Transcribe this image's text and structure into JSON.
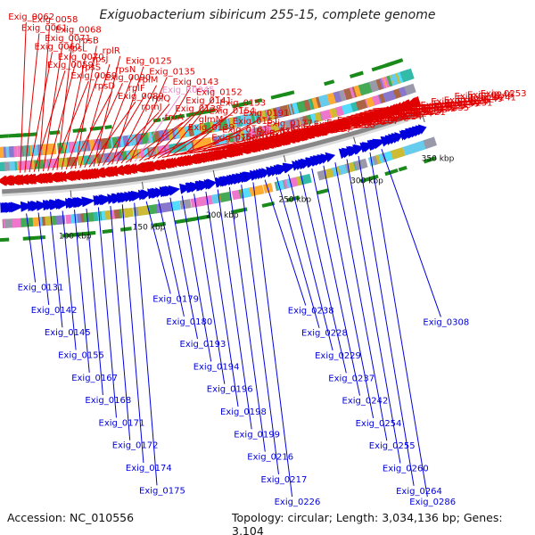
{
  "title": "Exiguobacterium sibiricum 255-15, complete genome",
  "accession": "Accession: NC_010556",
  "summary": "Topology: circular; Length: 3,034,136 bp; Genes: 3,104",
  "colors": {
    "forward_strand": "#e00000",
    "reverse_strand": "#0000dd",
    "rna_label": "#ee88cc",
    "backbone": "#888888",
    "tick": "#1a8a1a"
  },
  "scale_labels": [
    "100 kbp",
    "150 kbp",
    "200 kbp",
    "250 kbp",
    "300 kbp",
    "350 kbp"
  ],
  "forward_labels": [
    "Exig_0062",
    "Exig_0061",
    "Exig_0060",
    "Exig_0059",
    "Exig_0058",
    "Exig_0071",
    "Exig_0070",
    "Exig_0069",
    "Exig_0068",
    "rpsL",
    "rpsS",
    "rpsD",
    "rpsB",
    "rpsJ",
    "Exig_0090",
    "Exig_0089",
    "rplR",
    "rpsN",
    "rplF",
    "rpmJ",
    "Exig_0125",
    "rplM",
    "rplQ",
    "truA",
    "Exig_0135",
    "Exig_R0045",
    "Exig_0138",
    "Exig_0139",
    "Exig_0143",
    "Exig_0141",
    "glmM",
    "Exig_0150",
    "Exig_0152",
    "Exig_0154",
    "Exig_0161",
    "Exig_0157",
    "Exig_0153",
    "Exig_0151",
    "Exig_0169",
    "Exig_0173",
    "Exig_0191",
    "Exig_0184",
    "Exig_0183",
    "Exig_0178",
    "Exig_0177",
    "Exig_0176",
    "Exig_0185",
    "Exig_0197",
    "Exig_0192",
    "Exig_0190",
    "ispD",
    "Exig_0200",
    "Exig_0201",
    "Exig_0209",
    "Exig_0208",
    "Exig_0207",
    "Exig_0204",
    "Exig_0203",
    "Exig_0202",
    "Exig_0214",
    "Exig_0218",
    "Exig_0215",
    "Exig_0224",
    "Exig_0221",
    "Exig_0220",
    "Exig_0219",
    "Exig_0222",
    "Exig_0235",
    "Exig_0234",
    "Exig_0233",
    "Exig_0239",
    "Exig_0231",
    "Exig_0230",
    "Exig_0225",
    "Exig_0249",
    "Exig_0241",
    "Exig_0240",
    "Exig_0246",
    "Exig_0253"
  ],
  "reverse_labels": [
    "Exig_0131",
    "Exig_0142",
    "Exig_0145",
    "Exig_0155",
    "Exig_0167",
    "Exig_0168",
    "Exig_0171",
    "Exig_0172",
    "Exig_0174",
    "Exig_0175",
    "Exig_0179",
    "Exig_0180",
    "Exig_0193",
    "Exig_0194",
    "Exig_0196",
    "Exig_0198",
    "Exig_0199",
    "Exig_0216",
    "Exig_0217",
    "Exig_0226",
    "Exig_0238",
    "Exig_0228",
    "Exig_0229",
    "Exig_0237",
    "Exig_0242",
    "Exig_0254",
    "Exig_0255",
    "Exig_0260",
    "Exig_0264",
    "Exig_0286",
    "Exig_0308"
  ]
}
